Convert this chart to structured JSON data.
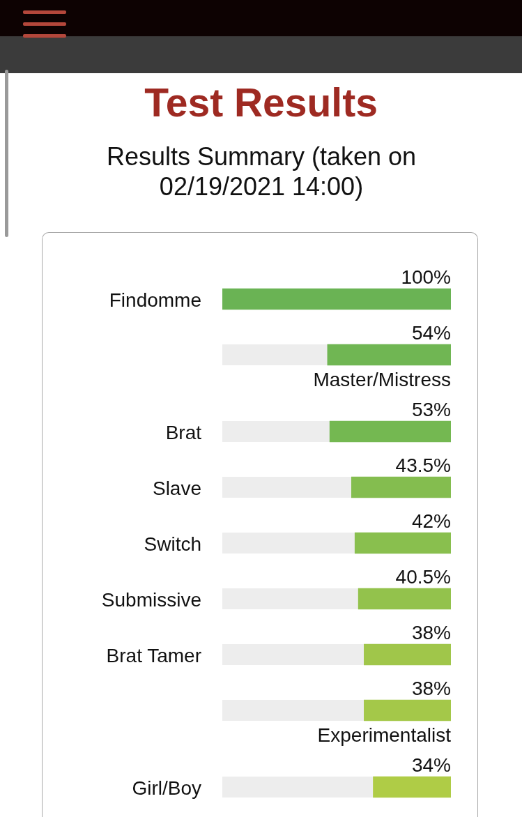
{
  "chart_data": {
    "type": "bar",
    "orientation": "horizontal",
    "title": "Test Results",
    "subtitle": "Results Summary (taken on 02/19/2021 14:00)",
    "categories": [
      "Findomme",
      "Master/Mistress",
      "Brat",
      "Slave",
      "Switch",
      "Submissive",
      "Brat Tamer",
      "Experimentalist",
      "Girl/Boy"
    ],
    "values": [
      100,
      54,
      53,
      43.5,
      42,
      40.5,
      38,
      38,
      34
    ],
    "value_labels": [
      "100%",
      "54%",
      "53%",
      "43.5%",
      "42%",
      "40.5%",
      "38%",
      "38%",
      "34%"
    ],
    "colors": [
      "#6ab354",
      "#70b653",
      "#74b851",
      "#84bd4f",
      "#89bf4e",
      "#93c24c",
      "#a0c64a",
      "#a4c849",
      "#afcc46"
    ],
    "xlim": [
      100,
      0
    ],
    "tick_labels": "y"
  }
}
